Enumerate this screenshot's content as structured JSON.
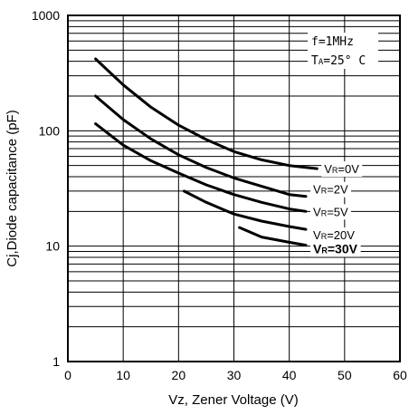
{
  "chart_data": {
    "type": "line",
    "xlabel": "Vz, Zener Voltage (V)",
    "ylabel": "Cj,Diode capacitance (pF)",
    "xlim": [
      0,
      60
    ],
    "ylim": [
      1,
      1000
    ],
    "y_scale": "log",
    "grid": true,
    "x_ticks": [
      "0",
      "10",
      "20",
      "30",
      "40",
      "50",
      "60"
    ],
    "y_ticks": [
      "1",
      "10",
      "100",
      "1000"
    ],
    "annotations": [
      "f=1MHz",
      "T",
      "A",
      "=25° C"
    ],
    "series": [
      {
        "name": "V",
        "sub": "R",
        "rest": "=0V",
        "bold": false,
        "x": [
          5,
          10,
          15,
          20,
          25,
          30,
          35,
          40,
          45
        ],
        "y": [
          420,
          250,
          160,
          112,
          84,
          66,
          56,
          50,
          47
        ]
      },
      {
        "name": "V",
        "sub": "R",
        "rest": "=2V",
        "bold": false,
        "x": [
          5,
          10,
          15,
          20,
          25,
          30,
          35,
          40,
          43
        ],
        "y": [
          200,
          125,
          85,
          62,
          48,
          39,
          33,
          28,
          27
        ]
      },
      {
        "name": "V",
        "sub": "R",
        "rest": "=5V",
        "bold": false,
        "x": [
          5,
          10,
          15,
          20,
          25,
          30,
          35,
          40,
          43
        ],
        "y": [
          115,
          75,
          55,
          43,
          34,
          28,
          24,
          21,
          20
        ]
      },
      {
        "name": "V",
        "sub": "R",
        "rest": "=20V",
        "bold": false,
        "x": [
          21,
          25,
          30,
          35,
          40,
          43
        ],
        "y": [
          30,
          24,
          19,
          16.5,
          14.8,
          14
        ]
      },
      {
        "name": "V",
        "sub": "R",
        "rest": "=30V",
        "bold": true,
        "x": [
          31,
          35,
          40,
          43
        ],
        "y": [
          14.5,
          12,
          10.8,
          10.2
        ]
      }
    ]
  }
}
